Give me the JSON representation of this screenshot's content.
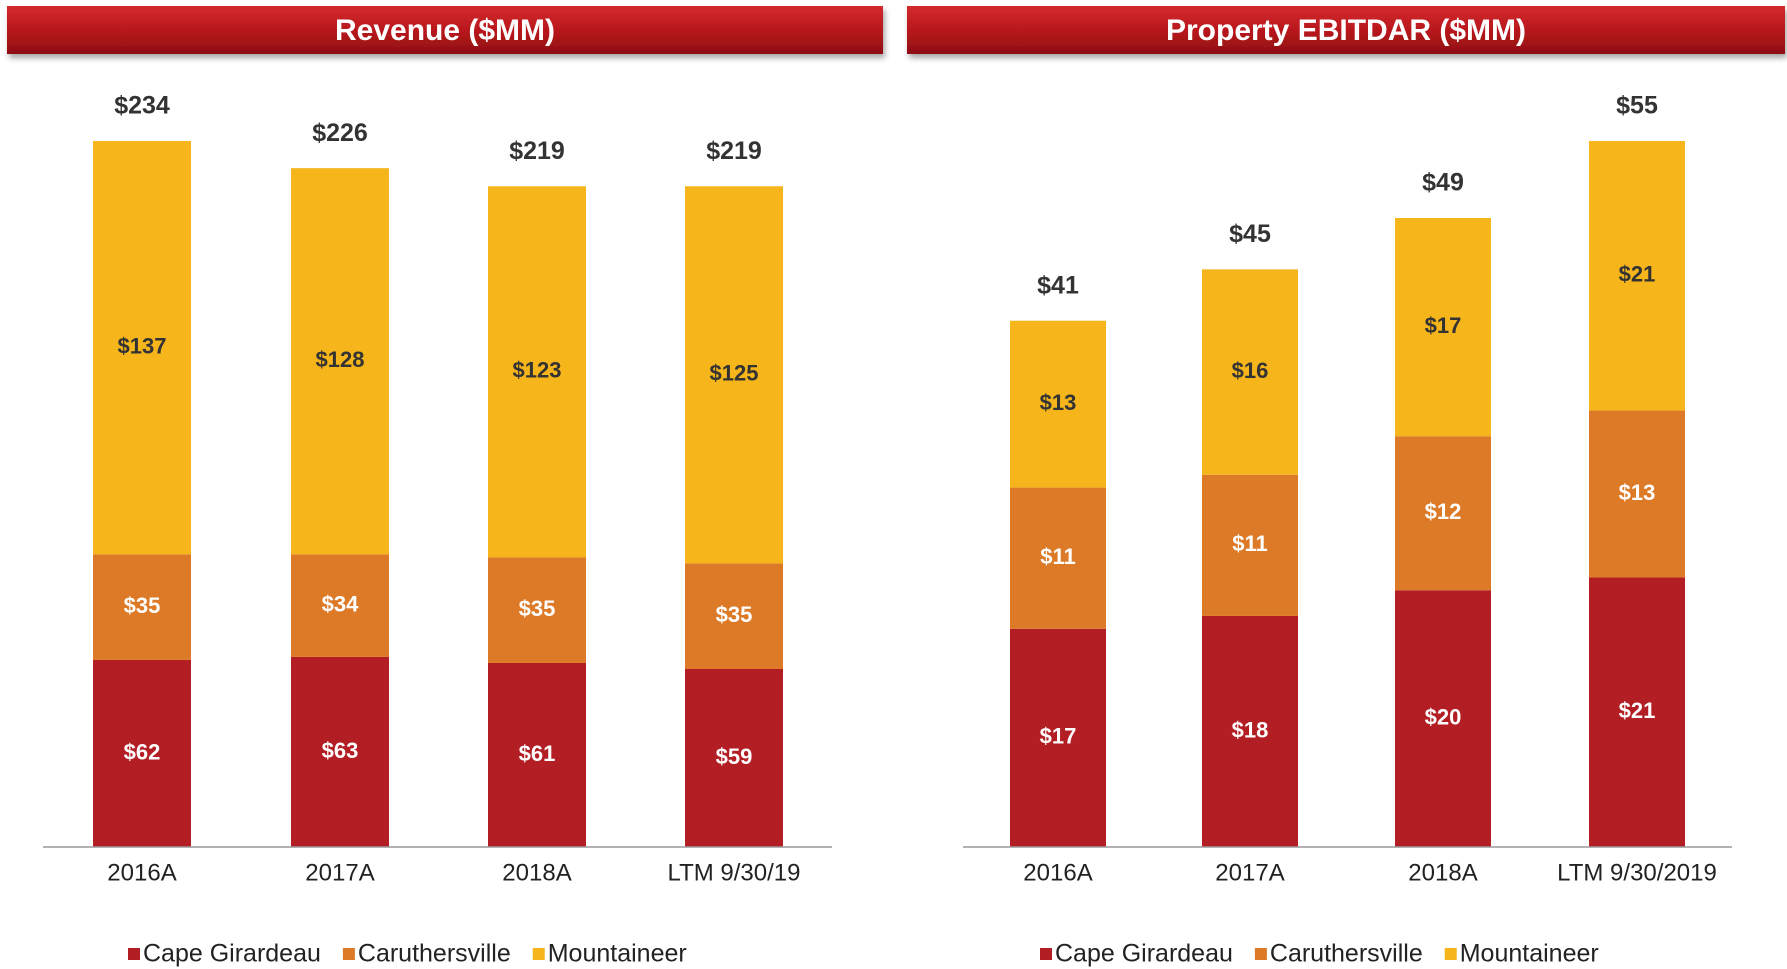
{
  "chart_data": [
    {
      "type": "stacked_bar",
      "title": "Revenue ($MM)",
      "categories": [
        "2016A",
        "2017A",
        "2018A",
        "LTM 9/30/19"
      ],
      "series": [
        {
          "name": "Cape Girardeau",
          "color": "#b31e24",
          "values": [
            62,
            63,
            61,
            59
          ],
          "value_labels": [
            "$62",
            "$63",
            "$61",
            "$59"
          ]
        },
        {
          "name": "Caruthersville",
          "color": "#dc7a27",
          "values": [
            35,
            34,
            35,
            35
          ],
          "value_labels": [
            "$35",
            "$34",
            "$35",
            "$35"
          ]
        },
        {
          "name": "Mountaineer",
          "color": "#f5b51b",
          "values": [
            137,
            128,
            123,
            125
          ],
          "value_labels": [
            "$137",
            "$128",
            "$123",
            "$125"
          ]
        }
      ],
      "totals": [
        234,
        226,
        219,
        219
      ],
      "total_labels": [
        "$234",
        "$226",
        "$219",
        "$219"
      ]
    },
    {
      "type": "stacked_bar",
      "title": "Property EBITDAR ($MM)",
      "categories": [
        "2016A",
        "2017A",
        "2018A",
        "LTM 9/30/2019"
      ],
      "series": [
        {
          "name": "Cape Girardeau",
          "color": "#b31e24",
          "values": [
            17,
            18,
            20,
            21
          ],
          "value_labels": [
            "$17",
            "$18",
            "$20",
            "$21"
          ]
        },
        {
          "name": "Caruthersville",
          "color": "#dc7a27",
          "values": [
            11,
            11,
            12,
            13
          ],
          "value_labels": [
            "$11",
            "$11",
            "$12",
            "$13"
          ]
        },
        {
          "name": "Mountaineer",
          "color": "#f5b51b",
          "values": [
            13,
            16,
            17,
            21
          ],
          "value_labels": [
            "$13",
            "$16",
            "$17",
            "$21"
          ]
        }
      ],
      "totals": [
        41,
        45,
        49,
        55
      ],
      "total_labels": [
        "$41",
        "$45",
        "$49",
        "$55"
      ]
    }
  ]
}
